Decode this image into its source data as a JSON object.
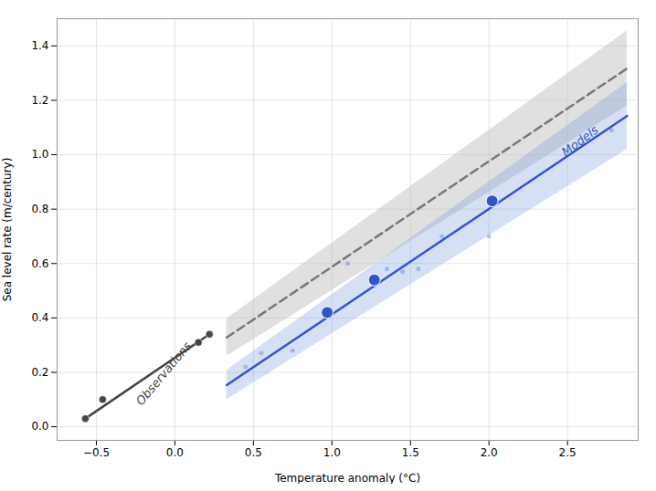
{
  "chart_data": {
    "type": "line",
    "xlabel": "Temperature anomaly (°C)",
    "ylabel": "Sea level rate (m/century)",
    "xlim": [
      -0.75,
      2.95
    ],
    "ylim": [
      -0.05,
      1.5
    ],
    "xticks": [
      {
        "value": -0.5,
        "label": "−0.5"
      },
      {
        "value": 0.0,
        "label": "0.0"
      },
      0.5,
      {
        "value": 1.0,
        "label": "1.0"
      },
      1.5,
      {
        "value": 2.0,
        "label": "2.0"
      },
      2.5
    ],
    "yticks": [
      {
        "value": 0.0,
        "label": "0.0"
      },
      0.2,
      0.4,
      0.6,
      0.8,
      {
        "value": 1.0,
        "label": "1.0"
      },
      1.2,
      1.4
    ],
    "grid": true,
    "series": [
      {
        "type": "area",
        "x": [
          0.33,
          2.88
        ],
        "lower": [
          0.25913,
          1.17968
        ],
        "upper": [
          0.39695,
          1.4552
        ],
        "color": "#bbbbbb"
      },
      {
        "type": "line",
        "x": [
          0.33,
          2.88
        ],
        "values": [
          0.32804,
          1.31744
        ],
        "color": "#777777",
        "line_style": "dashed"
      },
      {
        "type": "area",
        "x": [
          0.33,
          2.88
        ],
        "lower": [
          0.09913,
          1.01968
        ],
        "upper": [
          0.20695,
          1.2652
        ],
        "color": "#7799dd"
      },
      {
        "type": "line",
        "x": [
          0.33,
          2.88
        ],
        "values": [
          0.15304,
          1.14244
        ],
        "color": "#3355cc",
        "line_style": "solid"
      },
      {
        "type": "line",
        "x": [
          -0.57,
          0.22
        ],
        "values": [
          0.03,
          0.34
        ],
        "color": "#444444",
        "line_style": "solid"
      },
      {
        "type": "scatter",
        "x": [
          -0.57,
          -0.46,
          0.15,
          0.22
        ],
        "values": [
          0.03,
          0.1,
          0.31,
          0.34
        ],
        "color": "#444444",
        "marker": "crosshair"
      },
      {
        "type": "scatter",
        "x": [
          0.45,
          0.55,
          0.75,
          1.1,
          1.35,
          1.45,
          1.55,
          1.7,
          2.0,
          2.78
        ],
        "values": [
          0.22,
          0.27,
          0.28,
          0.6,
          0.58,
          0.57,
          0.58,
          0.7,
          0.7,
          1.09
        ],
        "color": "#3355cc",
        "marker": "point"
      },
      {
        "type": "scatter",
        "x": [
          0.97,
          1.27,
          2.02
        ],
        "values": [
          0.42,
          0.54,
          0.83
        ],
        "color": "#3355cc",
        "marker": "circle"
      }
    ],
    "annotations": [
      {
        "text": "Observations",
        "x": -0.07,
        "y": 0.195,
        "color": "#444444"
      },
      {
        "text": "Models",
        "x": 2.58,
        "y": 1.05,
        "color": "#3355cc"
      }
    ]
  }
}
